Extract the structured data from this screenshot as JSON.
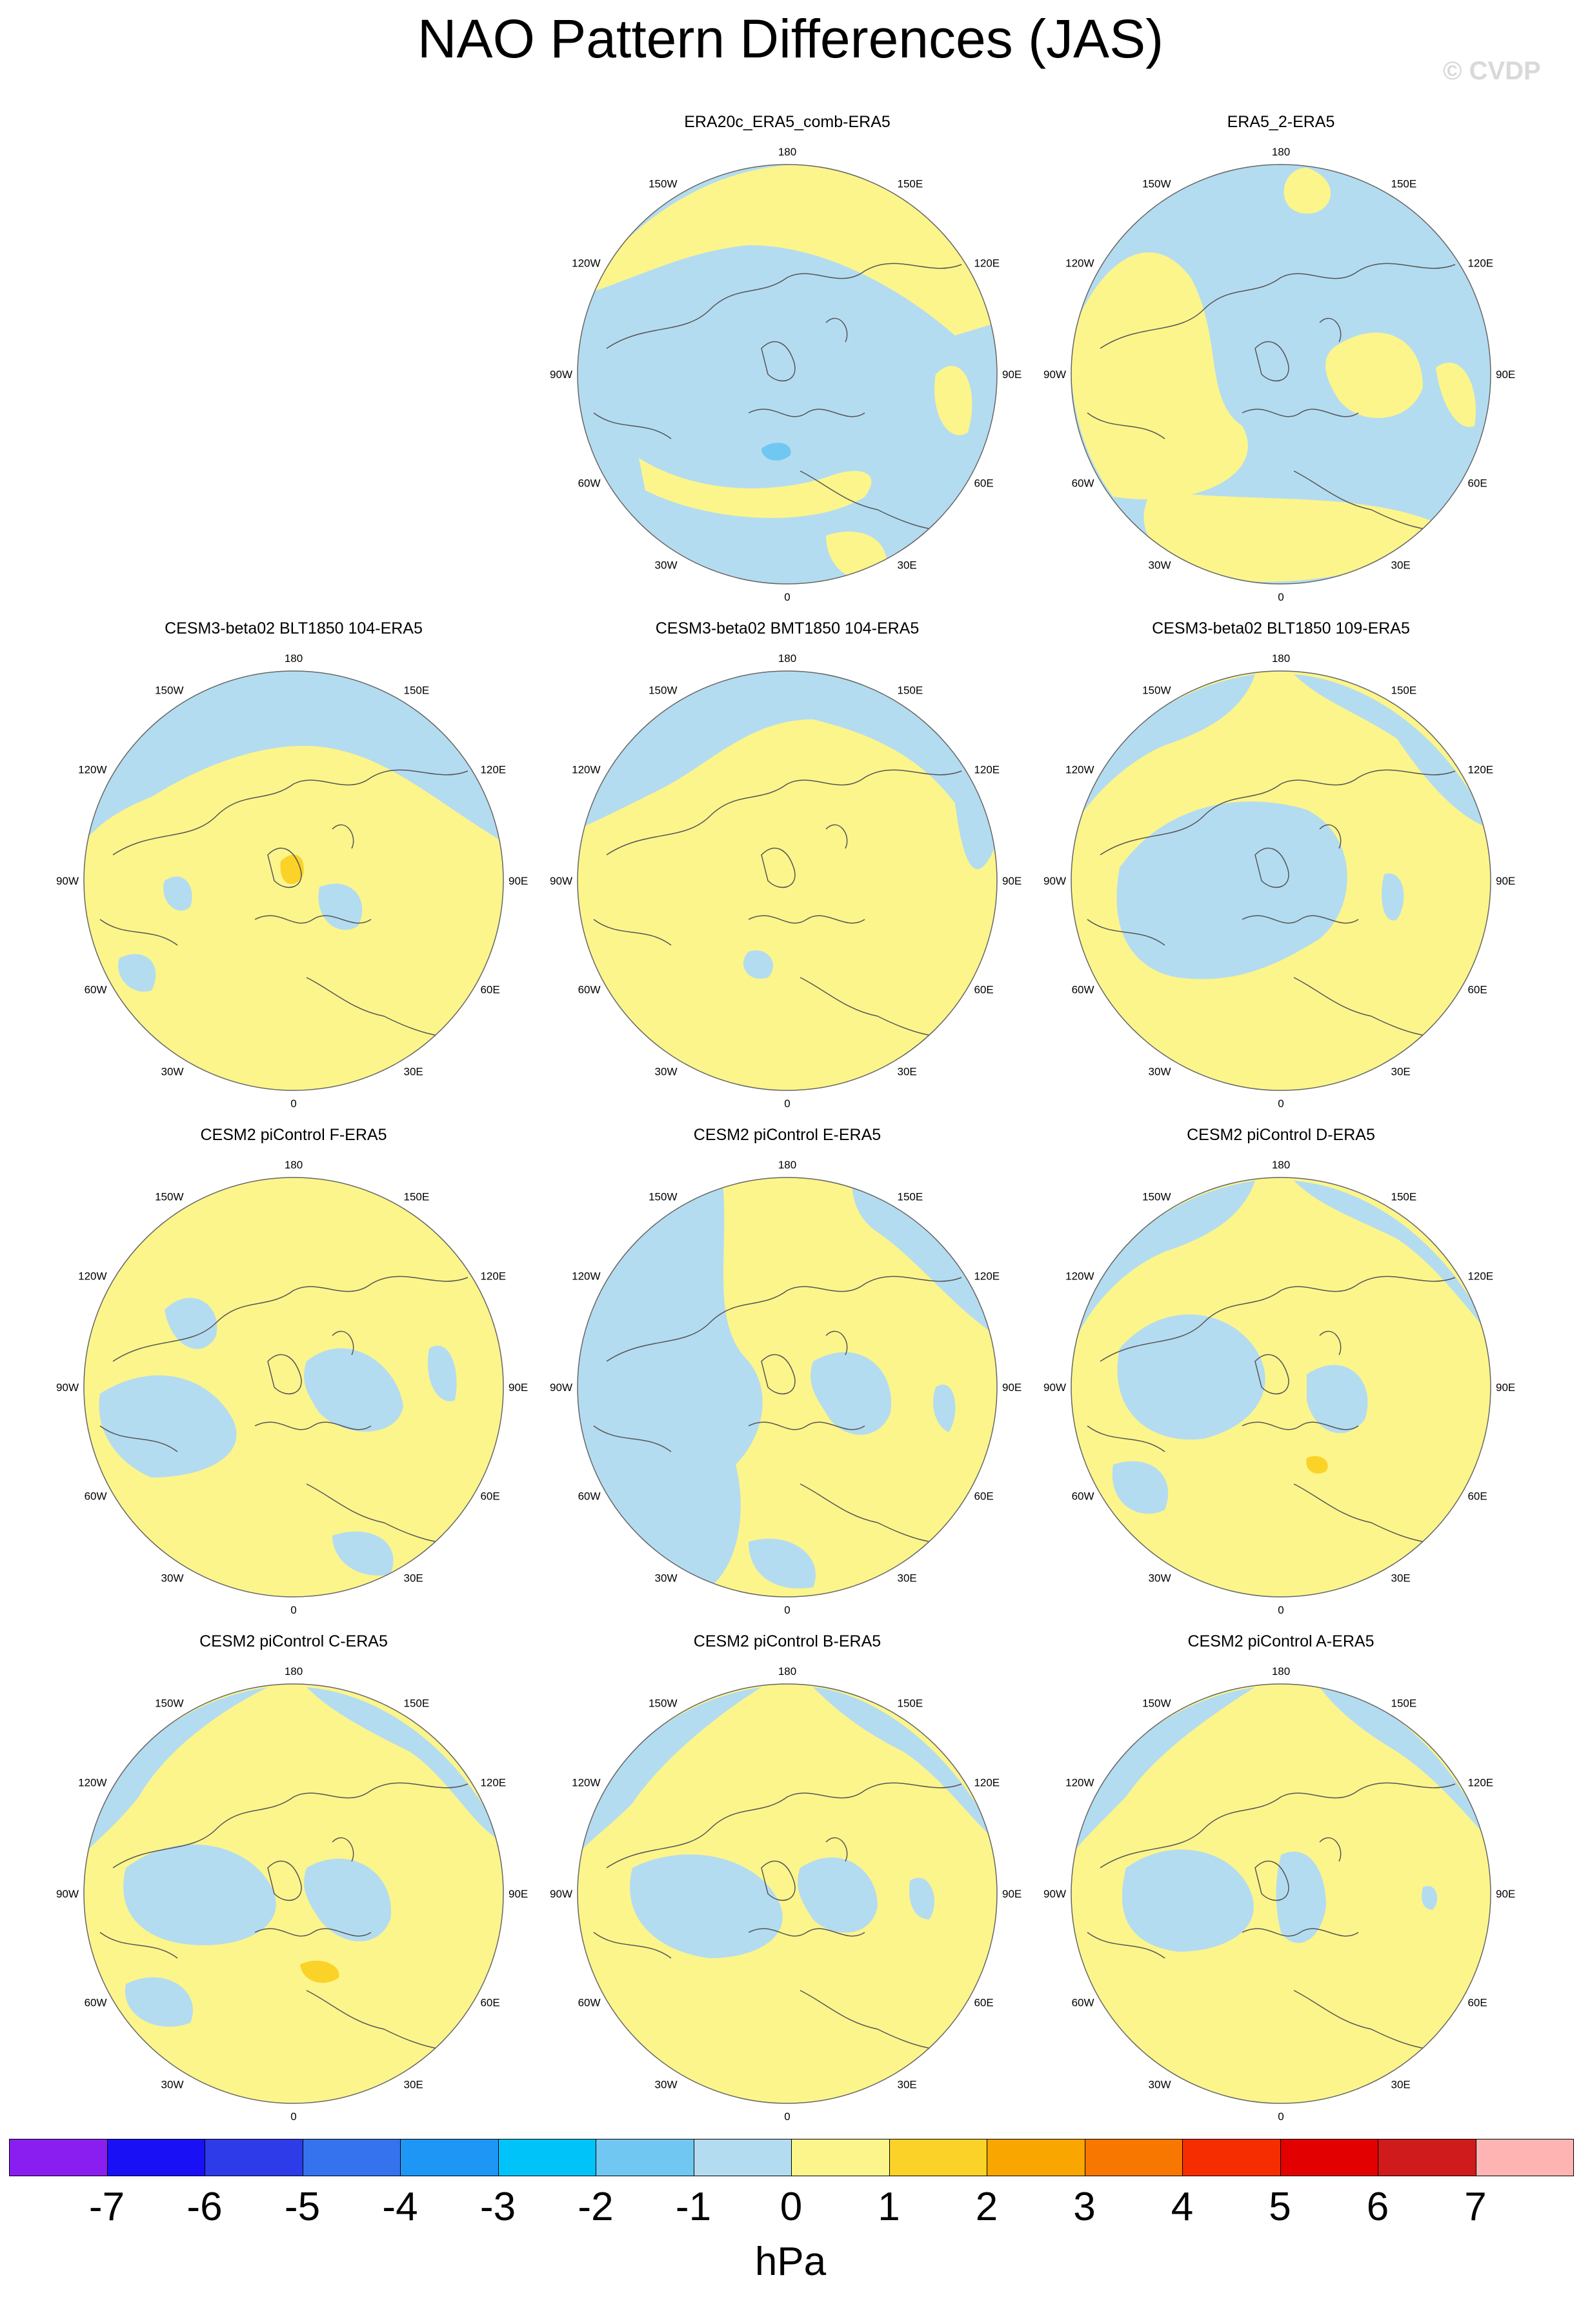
{
  "title": "NAO Pattern Differences (JAS)",
  "watermark": "© CVDP",
  "colorbar": {
    "units": "hPa",
    "labels": [
      "-7",
      "-6",
      "-5",
      "-4",
      "-3",
      "-2",
      "-1",
      "0",
      "1",
      "2",
      "3",
      "4",
      "5",
      "6",
      "7"
    ],
    "colors": [
      "#8a1ef0",
      "#1a10f5",
      "#2e3be8",
      "#3572ee",
      "#1e96f5",
      "#00c3fa",
      "#70c8f2",
      "#b4dcf0",
      "#fcf58c",
      "#fad228",
      "#faa600",
      "#f77700",
      "#f52d00",
      "#e30000",
      "#cf1b1b",
      "#ffb4b4"
    ]
  },
  "map_labels": {
    "top": "180",
    "bottom": "0",
    "left": "90W",
    "right": "90E",
    "ul1": "150W",
    "ur1": "150E",
    "ul2": "120W",
    "ur2": "120E",
    "ll1": "60W",
    "lr1": "60E",
    "ll2": "30W",
    "lr2": "30E"
  },
  "panels": [
    {
      "name": "ERA20c_ERA5_comb-ERA5",
      "dominant": "negative"
    },
    {
      "name": "ERA5_2-ERA5",
      "dominant": "mixed"
    },
    {
      "name": "CESM3-beta02 BLT1850 104-ERA5",
      "dominant": "positive"
    },
    {
      "name": "CESM3-beta02 BMT1850 104-ERA5",
      "dominant": "positive"
    },
    {
      "name": "CESM3-beta02 BLT1850 109-ERA5",
      "dominant": "positive"
    },
    {
      "name": "CESM2 piControl F-ERA5",
      "dominant": "positive"
    },
    {
      "name": "CESM2 piControl E-ERA5",
      "dominant": "mixed"
    },
    {
      "name": "CESM2 piControl D-ERA5",
      "dominant": "positive"
    },
    {
      "name": "CESM2 piControl C-ERA5",
      "dominant": "positive"
    },
    {
      "name": "CESM2 piControl B-ERA5",
      "dominant": "positive"
    },
    {
      "name": "CESM2 piControl A-ERA5",
      "dominant": "positive"
    }
  ]
}
